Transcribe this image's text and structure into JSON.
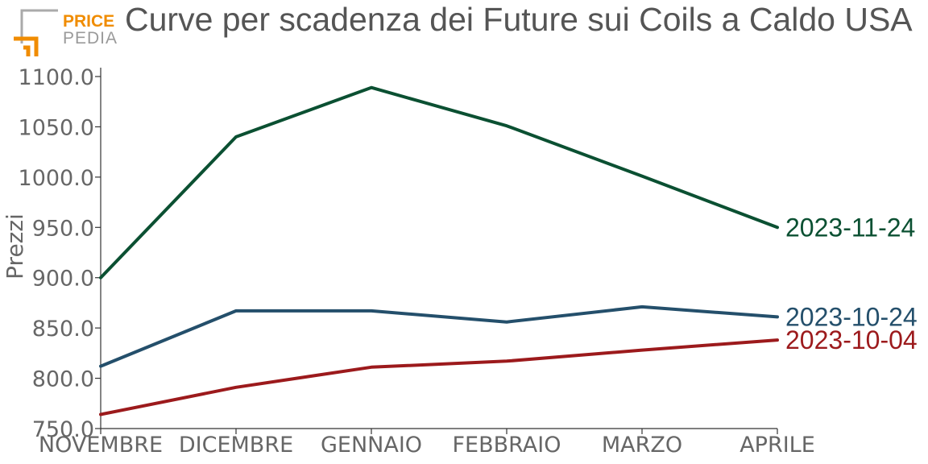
{
  "logo": {
    "word1": "PRICE",
    "word2": "PEDIA"
  },
  "chart_data": {
    "type": "line",
    "title": "Curve per scadenza dei Future sui Coils a Caldo USA",
    "xlabel": "",
    "ylabel": "Prezzi",
    "categories": [
      "NOVEMBRE",
      "DICEMBRE",
      "GENNAIO",
      "FEBBRAIO",
      "MARZO",
      "APRILE"
    ],
    "ylim": [
      750,
      1110
    ],
    "yticks": [
      750,
      800,
      850,
      900,
      950,
      1000,
      1050,
      1100
    ],
    "ytick_labels": [
      "750.0",
      "800.0",
      "850.0",
      "900.0",
      "950.0",
      "1000.0",
      "1050.0",
      "1100.0"
    ],
    "grid": false,
    "legend": "direct labels at line ends",
    "series": [
      {
        "name": "2023-11-24",
        "color": "#0b5032",
        "values": [
          900,
          1040,
          1089,
          1051,
          1001,
          950
        ]
      },
      {
        "name": "2023-10-24",
        "color": "#244f6b",
        "values": [
          812,
          867,
          867,
          856,
          871,
          861
        ]
      },
      {
        "name": "2023-10-04",
        "color": "#9c1a1c",
        "values": [
          764,
          791,
          811,
          817,
          828,
          838
        ]
      }
    ]
  }
}
